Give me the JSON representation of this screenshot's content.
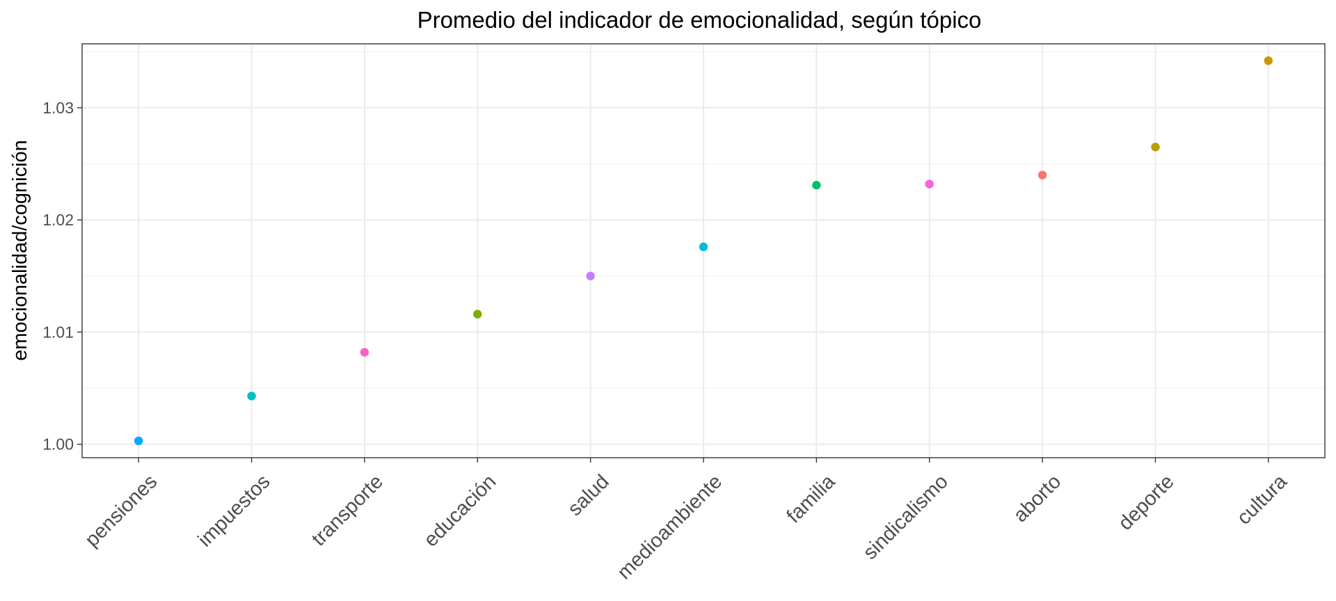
{
  "chart_data": {
    "type": "scatter",
    "title": "Promedio del indicador de emocionalidad, según tópico",
    "xlabel": "",
    "ylabel": "emocionalidad/cognición",
    "categories": [
      "pensiones",
      "impuestos",
      "transporte",
      "educación",
      "salud",
      "medioambiente",
      "familia",
      "sindicalismo",
      "aborto",
      "deporte",
      "cultura"
    ],
    "values": [
      1.0003,
      1.0043,
      1.0082,
      1.0116,
      1.015,
      1.0176,
      1.0231,
      1.0232,
      1.024,
      1.0265,
      1.0342
    ],
    "colors": [
      "#00A9FF",
      "#00BFC4",
      "#FF61C3",
      "#7CAE00",
      "#C77CFF",
      "#00BCD8",
      "#00BE67",
      "#F564E3",
      "#F8766D",
      "#B79F00",
      "#CD9600"
    ],
    "yticks": [
      "1.00",
      "1.01",
      "1.02",
      "1.03"
    ],
    "ytick_values": [
      1.0,
      1.01,
      1.02,
      1.03
    ],
    "ylim": [
      0.9988,
      1.0357
    ],
    "grid": true,
    "legend": "none"
  }
}
